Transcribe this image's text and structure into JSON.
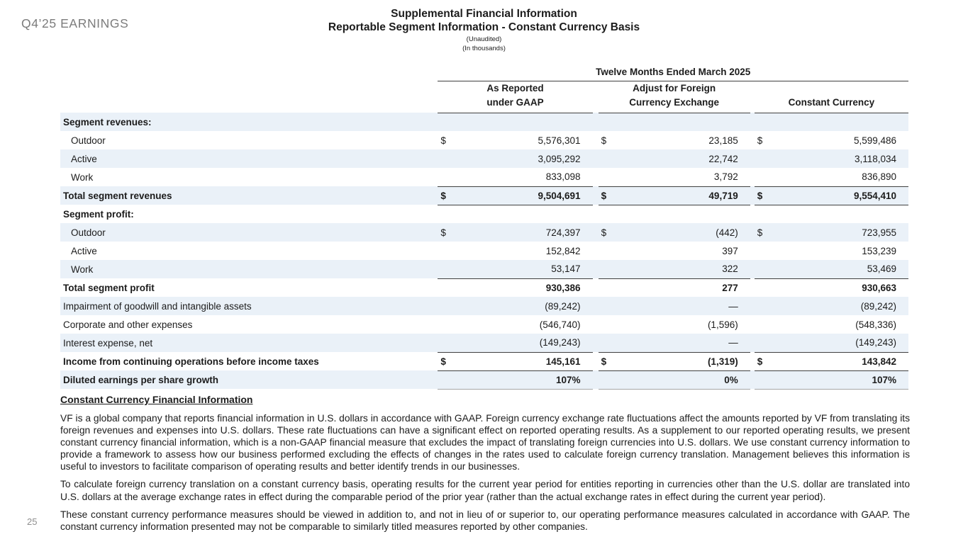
{
  "slide": {
    "eyebrow": "Q4’25 EARNINGS",
    "page_number": "25"
  },
  "header": {
    "title_line1": "Supplemental Financial Information",
    "title_line2": "Reportable Segment Information - Constant Currency Basis",
    "subtitle1": "(Unaudited)",
    "subtitle2": "(In thousands)"
  },
  "table": {
    "span_header": "Twelve Months Ended March 2025",
    "col_headers": [
      {
        "line1": "As Reported",
        "line2": "under GAAP"
      },
      {
        "line1": "Adjust for Foreign",
        "line2": "Currency Exchange"
      },
      {
        "line1": "",
        "line2": "Constant Currency"
      }
    ],
    "rows": [
      {
        "label": "Segment revenues:",
        "bold": true,
        "shaded": true,
        "cells": [
          "",
          "",
          "",
          "",
          "",
          ""
        ]
      },
      {
        "label": "Outdoor",
        "indent": true,
        "cells": [
          "$",
          "5,576,301",
          "$",
          "23,185",
          "$",
          "5,599,486"
        ]
      },
      {
        "label": "Active",
        "indent": true,
        "shaded": true,
        "cells": [
          "",
          "3,095,292",
          "",
          "22,742",
          "",
          "3,118,034"
        ]
      },
      {
        "label": "Work",
        "indent": true,
        "rule": "dark",
        "cells": [
          "",
          "833,098",
          "",
          "3,792",
          "",
          "836,890"
        ]
      },
      {
        "label": "Total segment revenues",
        "bold": true,
        "shaded": true,
        "rule": "dark",
        "cells": [
          "$",
          "9,504,691",
          "$",
          "49,719",
          "$",
          "9,554,410"
        ]
      },
      {
        "label": "Segment profit:",
        "bold": true,
        "cells": [
          "",
          "",
          "",
          "",
          "",
          ""
        ]
      },
      {
        "label": "Outdoor",
        "indent": true,
        "shaded": true,
        "cells": [
          "$",
          "724,397",
          "$",
          "(442)",
          "$",
          "723,955"
        ]
      },
      {
        "label": "Active",
        "indent": true,
        "cells": [
          "",
          "152,842",
          "",
          "397",
          "",
          "153,239"
        ]
      },
      {
        "label": "Work",
        "indent": true,
        "shaded": true,
        "rule": "dark",
        "cells": [
          "",
          "53,147",
          "",
          "322",
          "",
          "53,469"
        ]
      },
      {
        "label": "Total segment profit",
        "bold": true,
        "cells": [
          "",
          "930,386",
          "",
          "277",
          "",
          "930,663"
        ]
      },
      {
        "label": "Impairment of goodwill and intangible assets",
        "shaded": true,
        "cells": [
          "",
          "(89,242)",
          "",
          "—",
          "",
          "(89,242)"
        ]
      },
      {
        "label": "Corporate and other expenses",
        "cells": [
          "",
          "(546,740)",
          "",
          "(1,596)",
          "",
          "(548,336)"
        ]
      },
      {
        "label": "Interest expense, net",
        "shaded": true,
        "rule": "dark",
        "cells": [
          "",
          "(149,243)",
          "",
          "—",
          "",
          "(149,243)"
        ]
      },
      {
        "label": "Income from continuing operations before income taxes",
        "bold": true,
        "rule": "dark",
        "cells": [
          "$",
          "145,161",
          "$",
          "(1,319)",
          "$",
          "143,842"
        ]
      },
      {
        "label": "Diluted earnings per share growth",
        "bold": true,
        "shaded": true,
        "rule": "gray",
        "cells": [
          "",
          "107%",
          "",
          "0%",
          "",
          "107%"
        ]
      }
    ]
  },
  "notes": {
    "heading": "Constant Currency Financial Information",
    "paragraphs": [
      "VF is a global company that reports financial information in U.S. dollars in accordance with GAAP. Foreign currency exchange rate fluctuations affect the amounts reported by VF from translating its foreign revenues and expenses into U.S. dollars. These rate fluctuations can have a significant effect on reported operating results. As a supplement to our reported operating results, we present constant currency financial information, which is a non-GAAP financial measure that excludes the impact of translating foreign currencies into U.S. dollars. We use constant currency information to provide a framework to assess how our business performed excluding the effects of changes in the rates used to calculate foreign currency translation. Management believes this information is useful to investors to facilitate comparison of operating results and better identify trends in our businesses.",
      "To calculate foreign currency translation on a constant currency basis, operating results for the current year period for entities reporting in currencies other than the U.S. dollar are translated into U.S. dollars at the average exchange rates in effect during the comparable period of the prior year (rather than the actual exchange rates in effect during the current year period).",
      "These constant currency performance measures should be viewed in addition to, and not in lieu of or superior to, our operating performance measures calculated in accordance with GAAP. The constant currency information presented may not be comparable to similarly titled measures reported by other companies."
    ]
  },
  "colors": {
    "stripe": "#EAF1F8",
    "rule": "#404040",
    "rule-gray": "#A6A6A6",
    "muted": "#7C7C7C",
    "ink": "#1C1C1C"
  }
}
